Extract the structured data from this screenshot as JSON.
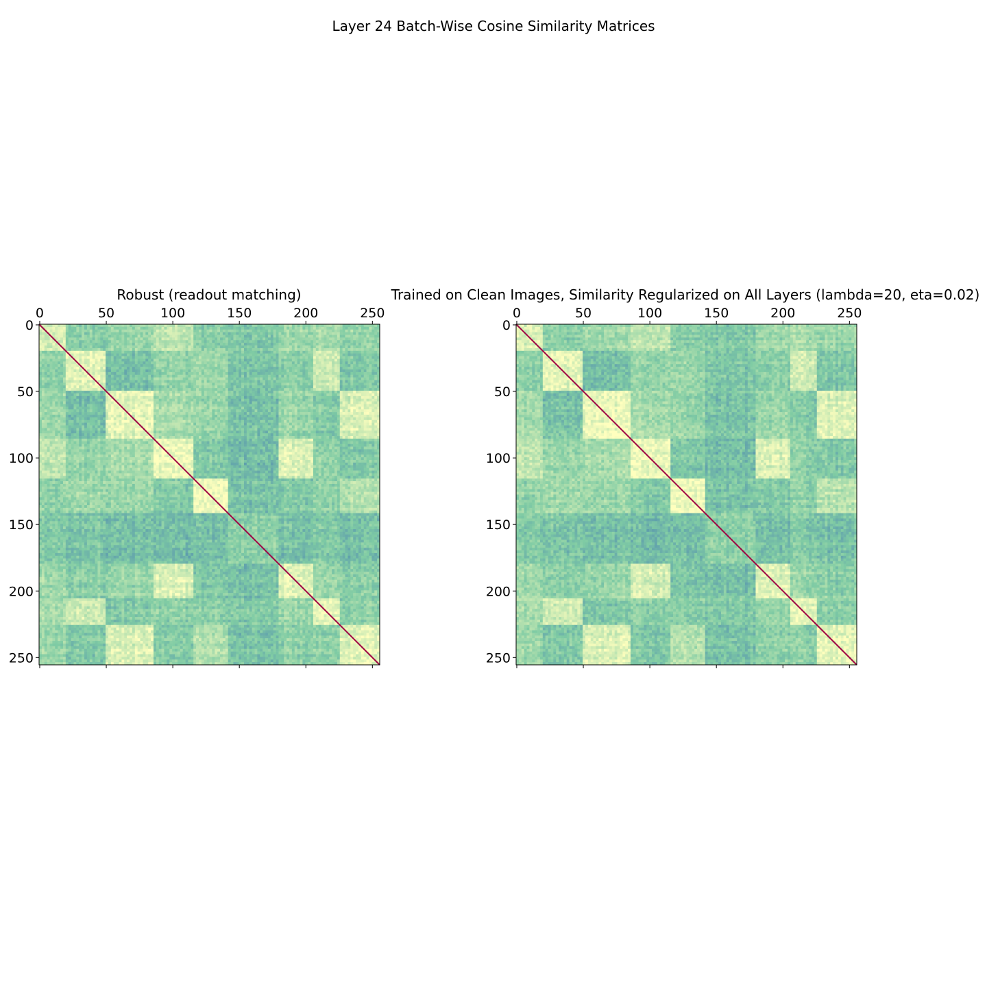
{
  "figure": {
    "suptitle": "Layer 24 Batch-Wise Cosine Similarity Matrices"
  },
  "colors": {
    "colormap": "Spectral_r",
    "low": "#3d6fb6",
    "mid": "#7fcba4",
    "high": "#ffffbe",
    "diagonal": "#9e0142"
  },
  "chart_data": [
    {
      "type": "heatmap",
      "title": "Robust (readout matching)",
      "size": 256,
      "xlim": [
        0,
        255
      ],
      "ylim": [
        255,
        0
      ],
      "x_ticks": [
        0,
        50,
        100,
        150,
        200,
        250
      ],
      "y_ticks": [
        0,
        50,
        100,
        150,
        200,
        250
      ],
      "x_tick_position": "top",
      "diagonal_value": 1.0,
      "block_boundaries": [
        0,
        20,
        50,
        85,
        115,
        142,
        180,
        206,
        226,
        256
      ],
      "block_similarity": [
        [
          0.85,
          0.55,
          0.6,
          0.75,
          0.55,
          0.5,
          0.62,
          0.65,
          0.6
        ],
        [
          0.55,
          0.9,
          0.45,
          0.58,
          0.62,
          0.48,
          0.55,
          0.8,
          0.5
        ],
        [
          0.6,
          0.45,
          0.9,
          0.65,
          0.6,
          0.45,
          0.6,
          0.5,
          0.85
        ],
        [
          0.75,
          0.58,
          0.65,
          0.92,
          0.5,
          0.42,
          0.85,
          0.55,
          0.5
        ],
        [
          0.55,
          0.62,
          0.6,
          0.5,
          0.95,
          0.45,
          0.5,
          0.55,
          0.7
        ],
        [
          0.5,
          0.48,
          0.45,
          0.42,
          0.45,
          0.55,
          0.45,
          0.5,
          0.45
        ],
        [
          0.62,
          0.55,
          0.6,
          0.85,
          0.5,
          0.45,
          0.88,
          0.6,
          0.55
        ],
        [
          0.65,
          0.8,
          0.5,
          0.55,
          0.55,
          0.5,
          0.6,
          0.9,
          0.55
        ],
        [
          0.6,
          0.5,
          0.85,
          0.5,
          0.7,
          0.45,
          0.55,
          0.55,
          0.88
        ]
      ]
    },
    {
      "type": "heatmap",
      "title": "Trained on Clean Images, Similarity Regularized on All Layers (lambda=20, eta=0.02)",
      "size": 256,
      "xlim": [
        0,
        255
      ],
      "ylim": [
        255,
        0
      ],
      "x_ticks": [
        0,
        50,
        100,
        150,
        200,
        250
      ],
      "y_ticks": [
        0,
        50,
        100,
        150,
        200,
        250
      ],
      "x_tick_position": "top",
      "diagonal_value": 1.0,
      "block_boundaries": [
        0,
        20,
        50,
        85,
        115,
        142,
        180,
        206,
        226,
        256
      ],
      "block_similarity": [
        [
          0.85,
          0.55,
          0.62,
          0.75,
          0.55,
          0.5,
          0.62,
          0.65,
          0.6
        ],
        [
          0.55,
          0.9,
          0.45,
          0.6,
          0.62,
          0.48,
          0.55,
          0.82,
          0.5
        ],
        [
          0.62,
          0.45,
          0.92,
          0.65,
          0.6,
          0.45,
          0.6,
          0.5,
          0.86
        ],
        [
          0.75,
          0.6,
          0.65,
          0.93,
          0.5,
          0.42,
          0.85,
          0.55,
          0.5
        ],
        [
          0.55,
          0.62,
          0.6,
          0.5,
          0.96,
          0.45,
          0.5,
          0.55,
          0.72
        ],
        [
          0.5,
          0.48,
          0.45,
          0.42,
          0.45,
          0.55,
          0.45,
          0.5,
          0.45
        ],
        [
          0.62,
          0.55,
          0.6,
          0.85,
          0.5,
          0.45,
          0.88,
          0.6,
          0.55
        ],
        [
          0.65,
          0.82,
          0.5,
          0.55,
          0.55,
          0.5,
          0.6,
          0.9,
          0.55
        ],
        [
          0.6,
          0.5,
          0.86,
          0.5,
          0.72,
          0.45,
          0.55,
          0.55,
          0.9
        ]
      ]
    }
  ]
}
